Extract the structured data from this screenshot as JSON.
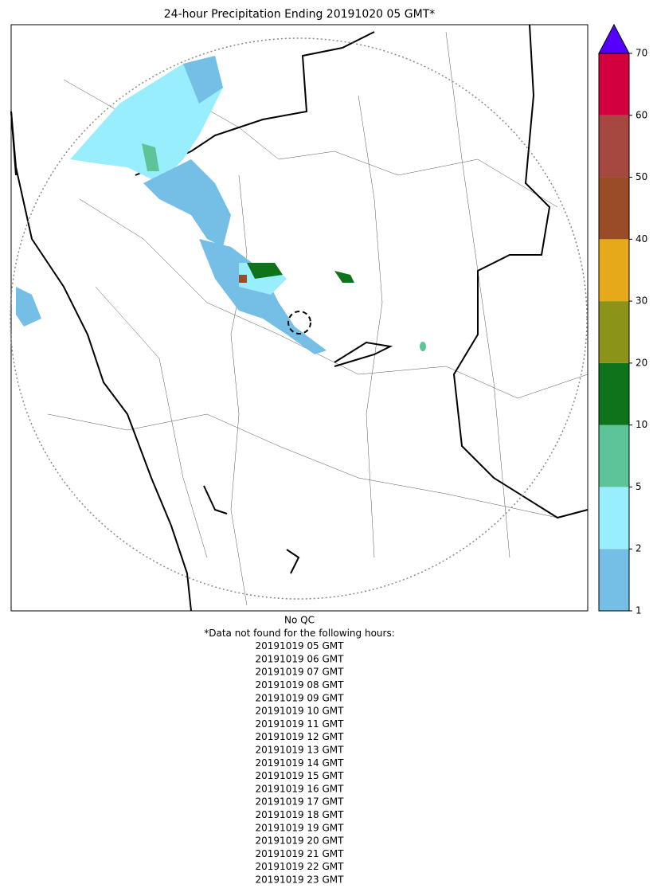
{
  "title": "24-hour Precipitation Ending 20191020 05 GMT*",
  "colorbar": {
    "ticks": [
      1,
      2,
      5,
      10,
      20,
      30,
      40,
      50,
      60,
      70
    ],
    "colors": [
      "#75bfe6",
      "#98eefc",
      "#5dc49a",
      "#0e731b",
      "#8b9418",
      "#e6a91a",
      "#9a4c27",
      "#a6483f",
      "#d3003f"
    ],
    "extend_color": "#5500ff"
  },
  "notes": [
    "No QC",
    "*Data not found for the following hours:",
    "20191019 05 GMT",
    "20191019 06 GMT",
    "20191019 07 GMT",
    "20191019 08 GMT",
    "20191019 09 GMT",
    "20191019 10 GMT",
    "20191019 11 GMT",
    "20191019 12 GMT",
    "20191019 13 GMT",
    "20191019 14 GMT",
    "20191019 15 GMT",
    "20191019 16 GMT",
    "20191019 17 GMT",
    "20191019 18 GMT",
    "20191019 19 GMT",
    "20191019 20 GMT",
    "20191019 21 GMT",
    "20191019 22 GMT",
    "20191019 23 GMT"
  ]
}
